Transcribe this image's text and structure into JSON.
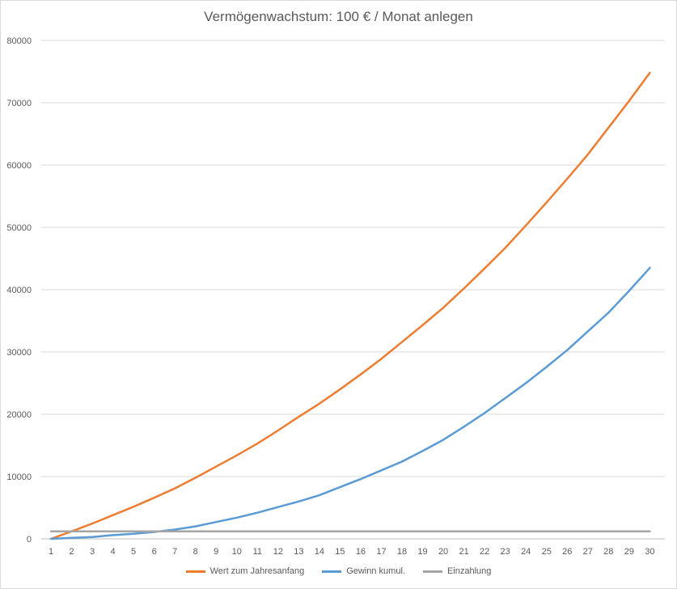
{
  "chart_data": {
    "type": "line",
    "title": "Vermögenwachstum: 100 € / Monat anlegen",
    "xlabel": "",
    "ylabel": "",
    "x": [
      1,
      2,
      3,
      4,
      5,
      6,
      7,
      8,
      9,
      10,
      11,
      12,
      13,
      14,
      15,
      16,
      17,
      18,
      19,
      20,
      21,
      22,
      23,
      24,
      25,
      26,
      27,
      28,
      29,
      30
    ],
    "ylim": [
      0,
      80000
    ],
    "yticks": [
      0,
      10000,
      20000,
      30000,
      40000,
      50000,
      60000,
      70000,
      80000
    ],
    "grid": true,
    "legend_position": "bottom",
    "series": [
      {
        "name": "Wert zum Jahresanfang",
        "color": "#ED7D31",
        "values": [
          0,
          1200,
          2450,
          3800,
          5150,
          6600,
          8100,
          9800,
          11600,
          13400,
          15300,
          17400,
          19600,
          21700,
          24000,
          26400,
          28900,
          31600,
          34300,
          37100,
          40200,
          43400,
          46700,
          50300,
          54000,
          57800,
          61700,
          66000,
          70300,
          74800
        ]
      },
      {
        "name": "Gewinn kumul.",
        "color": "#5B9BD5",
        "values": [
          0,
          150,
          300,
          600,
          800,
          1100,
          1500,
          2000,
          2700,
          3400,
          4200,
          5100,
          6000,
          7000,
          8300,
          9600,
          11000,
          12400,
          14100,
          15900,
          18000,
          20200,
          22600,
          25000,
          27600,
          30300,
          33300,
          36300,
          39800,
          43500
        ]
      },
      {
        "name": "Einzahlung",
        "color": "#A5A5A5",
        "values": [
          1200,
          1200,
          1200,
          1200,
          1200,
          1200,
          1200,
          1200,
          1200,
          1200,
          1200,
          1200,
          1200,
          1200,
          1200,
          1200,
          1200,
          1200,
          1200,
          1200,
          1200,
          1200,
          1200,
          1200,
          1200,
          1200,
          1200,
          1200,
          1200,
          1200
        ]
      }
    ]
  }
}
